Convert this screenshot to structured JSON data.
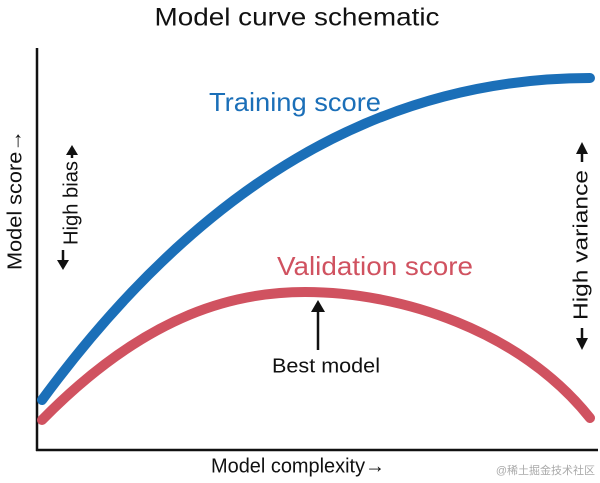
{
  "title": "Model curve schematic",
  "curves": {
    "training": "Training score",
    "validation": "Validation score"
  },
  "annotation": "Best model",
  "x_axis_label": "Model complexity→",
  "y_axis_label": "Model score→",
  "left_label": "High bias",
  "right_label": "High variance",
  "watermark": "@稀土掘金技术社区"
}
